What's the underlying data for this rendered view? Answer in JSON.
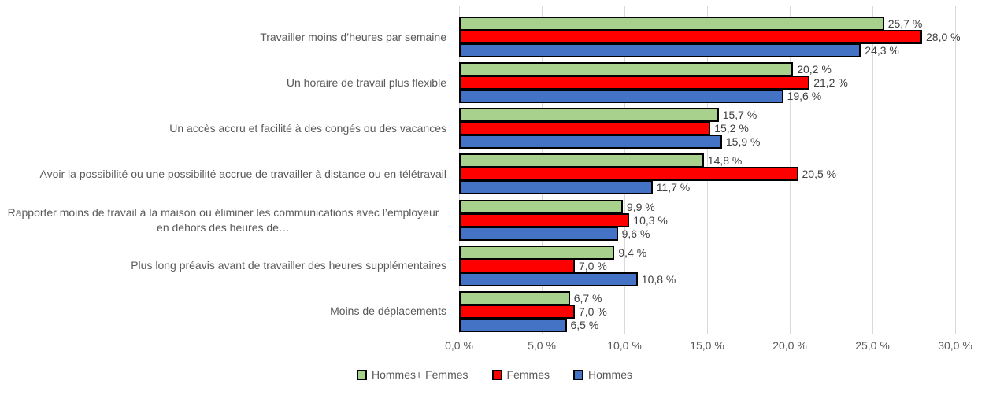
{
  "chart_data": {
    "type": "bar",
    "orientation": "horizontal",
    "title": "",
    "xlabel": "",
    "ylabel": "",
    "grid": true,
    "legend_position": "bottom",
    "categories": [
      "Travailler moins d’heures par semaine",
      "Un horaire de travail plus flexible",
      "Un accès accru et facilité à des congés ou des vacances",
      "Avoir la possibilité ou une possibilité accrue de travailler à distance ou en télétravail",
      "Rapporter moins de travail à la maison ou éliminer les communications avec l’employeur en dehors des heures de…",
      "Plus long préavis avant de travailler des heures supplémentaires",
      "Moins de déplacements"
    ],
    "series": [
      {
        "key": "hommes-femmes",
        "name": "Hommes+ Femmes",
        "color": "#a9d18e",
        "values": [
          25.7,
          20.2,
          15.7,
          14.8,
          9.9,
          9.4,
          6.7
        ],
        "labels": [
          "25,7 %",
          "20,2 %",
          "15,7 %",
          "14,8 %",
          "9,9 %",
          "9,4 %",
          "6,7 %"
        ]
      },
      {
        "key": "femmes",
        "name": "Femmes",
        "color": "#ff0000",
        "values": [
          28.0,
          21.2,
          15.2,
          20.5,
          10.3,
          7.0,
          7.0
        ],
        "labels": [
          "28,0 %",
          "21,2 %",
          "15,2 %",
          "20,5 %",
          "10,3 %",
          "7,0 %",
          "7,0 %"
        ]
      },
      {
        "key": "hommes",
        "name": "Hommes",
        "color": "#4472c4",
        "values": [
          24.3,
          19.6,
          15.9,
          11.7,
          9.6,
          10.8,
          6.5
        ],
        "labels": [
          "24,3 %",
          "19,6 %",
          "15,9 %",
          "11,7 %",
          "9,6 %",
          "10,8 %",
          "6,5 %"
        ]
      }
    ],
    "x_axis": {
      "min": 0,
      "max": 30,
      "ticks": [
        0,
        5,
        10,
        15,
        20,
        25,
        30
      ],
      "tick_labels": [
        "0,0 %",
        "5,0 %",
        "10,0 %",
        "15,0 %",
        "20,0 %",
        "25,0 %",
        "30,0 %"
      ]
    },
    "colors": {
      "gridline": "#d9d9d9",
      "category_text": "#595959",
      "axis_text": "#595959",
      "data_label_text": "#404040",
      "bar_border": "#000000",
      "background": "#ffffff"
    }
  }
}
